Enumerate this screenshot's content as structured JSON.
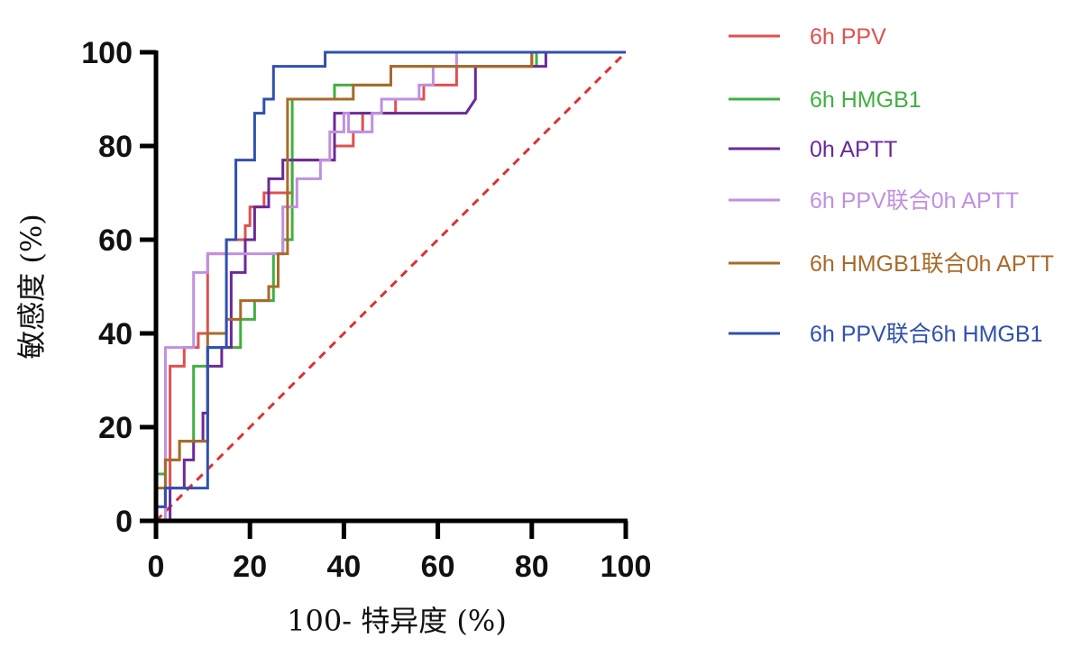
{
  "chart_data": {
    "type": "line",
    "title": "",
    "xlabel": "100- 特异度 (%)",
    "ylabel": "敏感度 (%)",
    "xlim": [
      0,
      100
    ],
    "ylim": [
      0,
      100
    ],
    "xticks": [
      "0",
      "20",
      "40",
      "60",
      "80",
      "100"
    ],
    "yticks": [
      "0",
      "20",
      "40",
      "60",
      "80",
      "100"
    ],
    "grid": false,
    "legend_position": "right",
    "reference_line": {
      "name": "reference",
      "x": [
        0,
        100
      ],
      "y": [
        0,
        100
      ],
      "style": "dashed",
      "color": "#e03030"
    },
    "series": [
      {
        "name": "6h PPV",
        "color": "#e05050",
        "x": [
          0,
          0,
          2,
          2,
          3,
          3,
          6,
          6,
          9,
          9,
          11,
          11,
          15,
          15,
          19,
          19,
          20,
          20,
          23,
          23,
          26,
          26,
          29,
          29,
          31,
          31,
          38,
          38,
          42,
          42,
          44,
          44,
          46,
          46,
          51,
          51,
          57,
          57,
          64,
          64,
          80,
          80,
          100
        ],
        "y": [
          0,
          3,
          3,
          7,
          7,
          33,
          33,
          37,
          37,
          40,
          40,
          57,
          57,
          60,
          60,
          63,
          63,
          67,
          67,
          70,
          70,
          70,
          70,
          77,
          77,
          77,
          77,
          80,
          80,
          83,
          83,
          87,
          87,
          87,
          87,
          90,
          90,
          93,
          93,
          97,
          97,
          100,
          100
        ]
      },
      {
        "name": "6h HMGB1",
        "color": "#40b040",
        "x": [
          0,
          0,
          2,
          2,
          5,
          5,
          8,
          8,
          11,
          11,
          15,
          15,
          18,
          18,
          21,
          21,
          23,
          23,
          25,
          25,
          27,
          27,
          29,
          29,
          38,
          38,
          41,
          41,
          50,
          50,
          53,
          53,
          81,
          81,
          100
        ],
        "y": [
          0,
          10,
          10,
          13,
          13,
          17,
          17,
          33,
          33,
          37,
          37,
          37,
          37,
          43,
          43,
          47,
          47,
          47,
          47,
          57,
          57,
          60,
          60,
          90,
          90,
          93,
          93,
          93,
          93,
          97,
          97,
          97,
          97,
          100,
          100
        ]
      },
      {
        "name": "0h APTT",
        "color": "#6a2a9a",
        "x": [
          0,
          3,
          3,
          6,
          6,
          8,
          8,
          10,
          10,
          11,
          11,
          14,
          14,
          16,
          16,
          19,
          19,
          21,
          21,
          24,
          24,
          27,
          27,
          29,
          29,
          38,
          38,
          40,
          40,
          66,
          68,
          68,
          83,
          83,
          100
        ],
        "y": [
          0,
          0,
          7,
          7,
          13,
          13,
          17,
          17,
          23,
          23,
          33,
          33,
          37,
          37,
          53,
          53,
          60,
          60,
          67,
          67,
          73,
          73,
          77,
          77,
          77,
          77,
          87,
          87,
          87,
          87,
          90,
          97,
          97,
          100,
          100
        ]
      },
      {
        "name": "6h PPV联合0h APTT",
        "color": "#c090e0",
        "x": [
          0,
          2,
          2,
          8,
          8,
          11,
          11,
          19,
          19,
          27,
          27,
          30,
          30,
          35,
          35,
          37,
          37,
          40,
          40,
          41,
          41,
          46,
          46,
          48,
          48,
          56,
          56,
          59,
          59,
          64,
          64,
          100
        ],
        "y": [
          0,
          0,
          37,
          37,
          53,
          53,
          57,
          57,
          57,
          57,
          67,
          67,
          73,
          73,
          77,
          77,
          83,
          83,
          87,
          87,
          83,
          83,
          87,
          87,
          90,
          90,
          93,
          93,
          97,
          97,
          100,
          100
        ]
      },
      {
        "name": "6h HMGB1联合0h APTT",
        "color": "#a86a2a",
        "x": [
          0,
          0,
          2,
          2,
          5,
          5,
          8,
          8,
          11,
          11,
          15,
          15,
          18,
          18,
          21,
          21,
          24,
          24,
          26,
          26,
          28,
          28,
          38,
          38,
          42,
          42,
          50,
          50,
          52,
          52,
          80,
          80,
          100
        ],
        "y": [
          0,
          7,
          7,
          13,
          13,
          17,
          17,
          17,
          17,
          40,
          40,
          43,
          43,
          47,
          47,
          47,
          47,
          50,
          50,
          57,
          57,
          90,
          90,
          90,
          90,
          93,
          93,
          97,
          97,
          97,
          97,
          100,
          100
        ]
      },
      {
        "name": "6h PPV联合6h HMGB1",
        "color": "#3050b0",
        "x": [
          0,
          0,
          2,
          2,
          5,
          5,
          11,
          11,
          15,
          15,
          17,
          17,
          21,
          21,
          23,
          23,
          25,
          25,
          36,
          36,
          100
        ],
        "y": [
          0,
          3,
          3,
          7,
          7,
          7,
          7,
          37,
          37,
          60,
          60,
          77,
          77,
          87,
          87,
          90,
          90,
          97,
          97,
          100,
          100
        ]
      }
    ]
  },
  "legend": {
    "items": [
      {
        "label": "6h PPV",
        "color": "#e05050"
      },
      {
        "label": "6h HMGB1",
        "color": "#40b040"
      },
      {
        "label": "0h APTT",
        "color": "#6a2a9a"
      },
      {
        "label": "6h PPV联合0h APTT",
        "color": "#c090e0"
      },
      {
        "label": "6h HMGB1联合0h APTT",
        "color": "#a86a2a"
      },
      {
        "label": "6h PPV联合6h HMGB1",
        "color": "#3050b0"
      }
    ]
  }
}
